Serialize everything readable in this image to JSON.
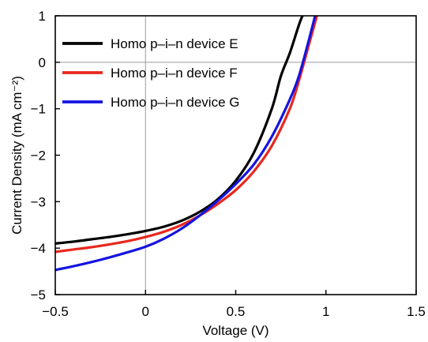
{
  "chart_data": {
    "type": "line",
    "title": "",
    "xlabel": "Voltage (V)",
    "ylabel": "Current Density (mA cm⁻²)",
    "xlim": [
      -0.5,
      1.5
    ],
    "ylim": [
      -5,
      1
    ],
    "xticks": [
      -0.5,
      0,
      0.5,
      1,
      1.5
    ],
    "xtick_labels": [
      "−0.5",
      "0",
      "0.5",
      "1",
      "1.5"
    ],
    "yticks": [
      -5,
      -4,
      -3,
      -2,
      -1,
      0,
      1
    ],
    "ytick_labels": [
      "−5",
      "−4",
      "−3",
      "−2",
      "−1",
      "0",
      "1"
    ],
    "grid": false,
    "zero_lines": true,
    "legend_position": "top-left",
    "series": [
      {
        "name": "Homo p–i–n device E",
        "color": "#000000",
        "x": [
          -0.5,
          -0.4,
          -0.3,
          -0.2,
          -0.1,
          0,
          0.1,
          0.2,
          0.3,
          0.4,
          0.5,
          0.6,
          0.7,
          0.75,
          0.8,
          0.85,
          0.87
        ],
        "y": [
          -3.9,
          -3.86,
          -3.81,
          -3.76,
          -3.7,
          -3.63,
          -3.54,
          -3.41,
          -3.22,
          -2.95,
          -2.55,
          -1.95,
          -1.0,
          -0.3,
          0.2,
          0.8,
          1.0
        ]
      },
      {
        "name": "Homo p–i–n device F",
        "color": "#e8281e",
        "x": [
          -0.5,
          -0.4,
          -0.3,
          -0.2,
          -0.1,
          0,
          0.1,
          0.2,
          0.3,
          0.4,
          0.5,
          0.6,
          0.7,
          0.8,
          0.85,
          0.9,
          0.95
        ],
        "y": [
          -4.08,
          -4.03,
          -3.98,
          -3.92,
          -3.85,
          -3.76,
          -3.65,
          -3.5,
          -3.3,
          -3.05,
          -2.75,
          -2.35,
          -1.8,
          -1.0,
          -0.4,
          0.3,
          1.0
        ]
      },
      {
        "name": "Homo p–i–n device G",
        "color": "#1414e0",
        "x": [
          -0.5,
          -0.4,
          -0.3,
          -0.2,
          -0.1,
          0,
          0.1,
          0.2,
          0.3,
          0.4,
          0.5,
          0.6,
          0.7,
          0.8,
          0.85,
          0.9,
          0.94
        ],
        "y": [
          -4.47,
          -4.39,
          -4.3,
          -4.2,
          -4.09,
          -3.97,
          -3.8,
          -3.58,
          -3.3,
          -2.98,
          -2.62,
          -2.2,
          -1.6,
          -0.8,
          -0.3,
          0.4,
          1.0
        ]
      }
    ]
  }
}
